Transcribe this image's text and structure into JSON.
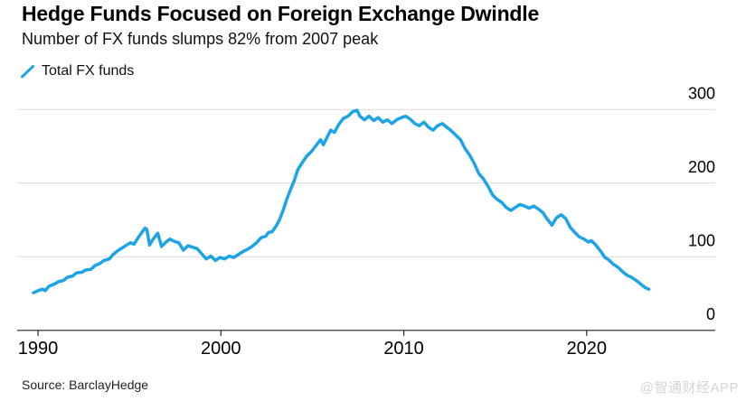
{
  "header": {
    "title": "Hedge Funds Focused on Foreign Exchange Dwindle",
    "subtitle": "Number of FX funds slumps 82% from 2007 peak"
  },
  "legend": {
    "items": [
      {
        "label": "Total FX funds",
        "marker": "diagonal-line",
        "color": "#1ca3e8"
      }
    ]
  },
  "colors": {
    "line": "#1ca3e8",
    "grid": "#d9d9d9",
    "axis": "#222222",
    "text": "#000000",
    "watermark": "#d4d4d4"
  },
  "chart_data": {
    "type": "line",
    "title": "Hedge Funds Focused on Foreign Exchange Dwindle",
    "subtitle": "Number of FX funds slumps 82% from 2007 peak",
    "xlabel": "",
    "ylabel": "",
    "x_unit": "year",
    "xticks": [
      1990,
      2000,
      2010,
      2020
    ],
    "yticks": [
      0,
      100,
      200,
      300
    ],
    "xlim": [
      1988.86,
      2027.03
    ],
    "ylim": [
      0,
      300
    ],
    "grid": "horizontal",
    "y_axis_side": "right",
    "legend_position": "top-left",
    "series": [
      {
        "name": "Total FX funds",
        "color": "#1ca3e8",
        "points": [
          [
            1989.75,
            51
          ],
          [
            1990.0,
            54
          ],
          [
            1990.25,
            56
          ],
          [
            1990.4,
            54
          ],
          [
            1990.6,
            60
          ],
          [
            1990.9,
            63
          ],
          [
            1991.1,
            66
          ],
          [
            1991.4,
            68
          ],
          [
            1991.6,
            72
          ],
          [
            1991.9,
            74
          ],
          [
            1992.1,
            78
          ],
          [
            1992.4,
            79
          ],
          [
            1992.6,
            82
          ],
          [
            1992.9,
            83
          ],
          [
            1993.1,
            88
          ],
          [
            1993.4,
            91
          ],
          [
            1993.6,
            95
          ],
          [
            1993.9,
            97
          ],
          [
            1994.1,
            103
          ],
          [
            1994.35,
            108
          ],
          [
            1994.6,
            112
          ],
          [
            1994.85,
            116
          ],
          [
            1995.05,
            119
          ],
          [
            1995.25,
            117
          ],
          [
            1995.45,
            125
          ],
          [
            1995.65,
            132
          ],
          [
            1995.85,
            139
          ],
          [
            1995.95,
            137
          ],
          [
            1996.1,
            116
          ],
          [
            1996.3,
            124
          ],
          [
            1996.55,
            132
          ],
          [
            1996.75,
            114
          ],
          [
            1997.0,
            120
          ],
          [
            1997.2,
            124
          ],
          [
            1997.45,
            121
          ],
          [
            1997.7,
            119
          ],
          [
            1997.95,
            109
          ],
          [
            1998.2,
            115
          ],
          [
            1998.45,
            113
          ],
          [
            1998.7,
            111
          ],
          [
            1998.95,
            104
          ],
          [
            1999.2,
            97
          ],
          [
            1999.45,
            101
          ],
          [
            1999.7,
            95
          ],
          [
            1999.95,
            99
          ],
          [
            2000.2,
            97
          ],
          [
            2000.45,
            101
          ],
          [
            2000.7,
            99
          ],
          [
            2000.95,
            103
          ],
          [
            2001.2,
            107
          ],
          [
            2001.45,
            110
          ],
          [
            2001.7,
            114
          ],
          [
            2001.95,
            119
          ],
          [
            2002.2,
            126
          ],
          [
            2002.45,
            128
          ],
          [
            2002.6,
            133
          ],
          [
            2002.8,
            134
          ],
          [
            2003.0,
            141
          ],
          [
            2003.2,
            150
          ],
          [
            2003.4,
            163
          ],
          [
            2003.6,
            178
          ],
          [
            2003.8,
            191
          ],
          [
            2004.0,
            203
          ],
          [
            2004.2,
            218
          ],
          [
            2004.45,
            228
          ],
          [
            2004.7,
            237
          ],
          [
            2004.95,
            243
          ],
          [
            2005.2,
            251
          ],
          [
            2005.45,
            259
          ],
          [
            2005.6,
            252
          ],
          [
            2005.8,
            262
          ],
          [
            2006.0,
            272
          ],
          [
            2006.2,
            269
          ],
          [
            2006.45,
            280
          ],
          [
            2006.7,
            288
          ],
          [
            2006.95,
            291
          ],
          [
            2007.2,
            297
          ],
          [
            2007.45,
            299
          ],
          [
            2007.6,
            291
          ],
          [
            2007.85,
            286
          ],
          [
            2008.1,
            291
          ],
          [
            2008.35,
            285
          ],
          [
            2008.6,
            289
          ],
          [
            2008.85,
            283
          ],
          [
            2009.1,
            286
          ],
          [
            2009.35,
            281
          ],
          [
            2009.6,
            286
          ],
          [
            2009.85,
            289
          ],
          [
            2010.1,
            291
          ],
          [
            2010.35,
            287
          ],
          [
            2010.6,
            281
          ],
          [
            2010.85,
            278
          ],
          [
            2011.1,
            283
          ],
          [
            2011.35,
            276
          ],
          [
            2011.6,
            272
          ],
          [
            2011.85,
            278
          ],
          [
            2012.1,
            281
          ],
          [
            2012.35,
            276
          ],
          [
            2012.6,
            271
          ],
          [
            2012.85,
            265
          ],
          [
            2013.1,
            259
          ],
          [
            2013.35,
            247
          ],
          [
            2013.6,
            238
          ],
          [
            2013.85,
            227
          ],
          [
            2014.1,
            213
          ],
          [
            2014.35,
            206
          ],
          [
            2014.6,
            196
          ],
          [
            2014.85,
            184
          ],
          [
            2015.1,
            178
          ],
          [
            2015.35,
            174
          ],
          [
            2015.6,
            167
          ],
          [
            2015.85,
            163
          ],
          [
            2016.1,
            167
          ],
          [
            2016.35,
            171
          ],
          [
            2016.6,
            169
          ],
          [
            2016.85,
            166
          ],
          [
            2017.1,
            169
          ],
          [
            2017.35,
            165
          ],
          [
            2017.6,
            160
          ],
          [
            2017.85,
            151
          ],
          [
            2018.1,
            143
          ],
          [
            2018.35,
            153
          ],
          [
            2018.6,
            157
          ],
          [
            2018.85,
            152
          ],
          [
            2019.1,
            140
          ],
          [
            2019.35,
            133
          ],
          [
            2019.6,
            127
          ],
          [
            2019.85,
            124
          ],
          [
            2020.1,
            120
          ],
          [
            2020.25,
            122
          ],
          [
            2020.5,
            116
          ],
          [
            2020.75,
            108
          ],
          [
            2021.0,
            99
          ],
          [
            2021.2,
            96
          ],
          [
            2021.45,
            90
          ],
          [
            2021.7,
            86
          ],
          [
            2021.95,
            80
          ],
          [
            2022.2,
            75
          ],
          [
            2022.45,
            72
          ],
          [
            2022.7,
            68
          ],
          [
            2022.95,
            63
          ],
          [
            2023.2,
            58
          ],
          [
            2023.4,
            56
          ]
        ]
      }
    ]
  },
  "footer": {
    "source": "Source: BarclayHedge",
    "watermark": "@智通财经APP"
  }
}
